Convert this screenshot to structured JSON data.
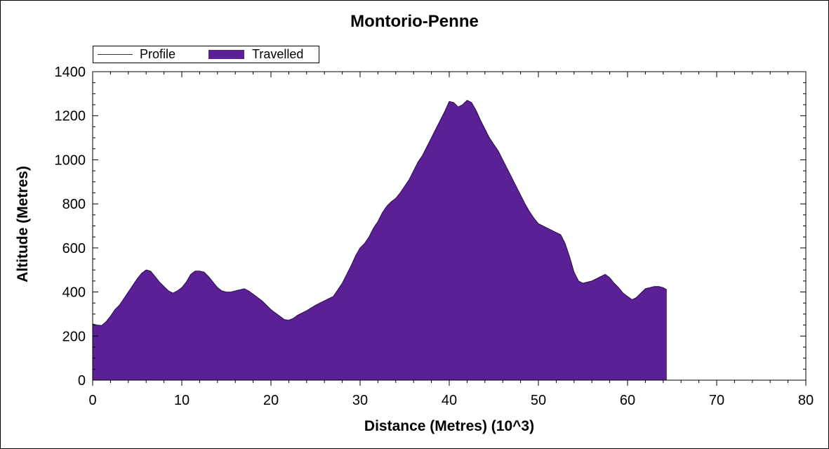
{
  "chart_data": {
    "type": "area",
    "title": "Montorio-Penne",
    "xlabel": "Distance (Metres) (10^3)",
    "ylabel": "Altitude (Metres)",
    "xlim": [
      0,
      80
    ],
    "ylim": [
      0,
      1400
    ],
    "x_ticks": [
      0,
      10,
      20,
      30,
      40,
      50,
      60,
      70,
      80
    ],
    "x_tick_labels": [
      "0",
      "10",
      "20",
      "30",
      "40",
      "50",
      "60",
      "70",
      "80"
    ],
    "y_ticks": [
      0,
      200,
      400,
      600,
      800,
      1000,
      1200,
      1400
    ],
    "y_tick_labels": [
      "0",
      "200",
      "400",
      "600",
      "800",
      "1000",
      "1200",
      "1400"
    ],
    "grid": false,
    "legend_position": "top-left",
    "legend": [
      {
        "label": "Profile",
        "style": "line",
        "color": "#333333"
      },
      {
        "label": "Travelled",
        "style": "fill",
        "color": "#5b1f96"
      }
    ],
    "series": [
      {
        "name": "Travelled",
        "color": "#5b1f96",
        "x": [
          0,
          0.5,
          1,
          1.5,
          2,
          2.5,
          3,
          3.5,
          4,
          4.5,
          5,
          5.5,
          6,
          6.5,
          7,
          7.5,
          8,
          8.5,
          9,
          9.5,
          10,
          10.5,
          11,
          11.5,
          12,
          12.5,
          13,
          13.5,
          14,
          14.5,
          15,
          15.5,
          16,
          16.5,
          17,
          17.5,
          18,
          18.5,
          19,
          19.5,
          20,
          20.5,
          21,
          21.5,
          22,
          22.5,
          23,
          24,
          25,
          26,
          27,
          27.5,
          28,
          28.5,
          29,
          29.5,
          30,
          30.5,
          31,
          31.5,
          32,
          32.5,
          33,
          33.5,
          34,
          34.5,
          35,
          35.5,
          36,
          36.5,
          37,
          37.5,
          38,
          38.5,
          39,
          39.5,
          40,
          40.5,
          41,
          41.5,
          42,
          42.5,
          43,
          43.5,
          44,
          44.5,
          45,
          45.5,
          46,
          46.5,
          47,
          47.5,
          48,
          48.5,
          49,
          49.5,
          50,
          50.5,
          51,
          51.5,
          52,
          52.5,
          53,
          53.5,
          54,
          54.5,
          55,
          55.5,
          56,
          56.5,
          57,
          57.5,
          58,
          58.5,
          59,
          59.5,
          60,
          60.5,
          61,
          61.5,
          62,
          62.5,
          63,
          63.5,
          64,
          64.4
        ],
        "values": [
          255,
          250,
          248,
          265,
          290,
          320,
          340,
          370,
          400,
          430,
          460,
          485,
          500,
          495,
          470,
          445,
          425,
          405,
          395,
          405,
          420,
          445,
          480,
          495,
          495,
          490,
          470,
          445,
          420,
          405,
          400,
          400,
          405,
          410,
          415,
          405,
          390,
          375,
          360,
          340,
          320,
          305,
          290,
          275,
          272,
          280,
          295,
          315,
          340,
          360,
          380,
          410,
          440,
          480,
          520,
          565,
          600,
          620,
          650,
          690,
          720,
          760,
          790,
          810,
          825,
          850,
          880,
          910,
          950,
          990,
          1020,
          1060,
          1100,
          1140,
          1180,
          1220,
          1265,
          1260,
          1240,
          1250,
          1270,
          1260,
          1225,
          1180,
          1140,
          1100,
          1070,
          1040,
          1000,
          960,
          920,
          880,
          840,
          800,
          765,
          735,
          710,
          700,
          690,
          680,
          670,
          660,
          620,
          560,
          490,
          450,
          440,
          445,
          450,
          460,
          470,
          480,
          465,
          440,
          420,
          395,
          380,
          365,
          375,
          395,
          415,
          420,
          425,
          425,
          420,
          410
        ]
      }
    ]
  }
}
